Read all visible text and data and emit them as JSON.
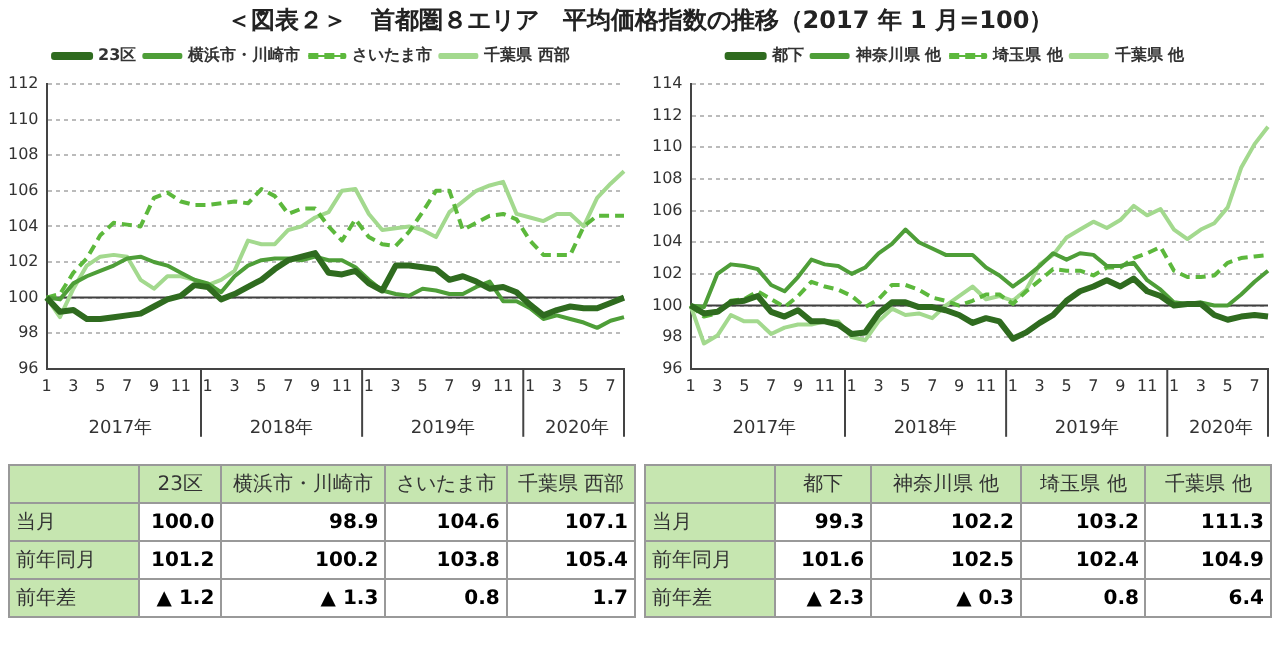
{
  "chart_data": [
    {
      "type": "line",
      "title": "＜図表２＞　首都圏８エリア　平均価格指数の推移（2017 年 1 月=100）",
      "categories": [
        "1",
        null,
        "3",
        null,
        "5",
        null,
        "7",
        null,
        "9",
        null,
        "11",
        null,
        "1",
        null,
        "3",
        null,
        "5",
        null,
        "7",
        null,
        "9",
        null,
        "11",
        null,
        "1",
        null,
        "3",
        null,
        "5",
        null,
        "7",
        null,
        "9",
        null,
        "11",
        null,
        "1",
        null,
        "3",
        null,
        "5",
        null,
        "7",
        null
      ],
      "series": [
        {
          "name": "23区",
          "color": "#2f6b1f",
          "values": [
            100,
            99.2,
            99.3,
            98.8,
            98.8,
            98.9,
            99.0,
            99.1,
            99.5,
            99.9,
            100.1,
            100.7,
            100.6,
            99.9,
            100.2,
            100.6,
            101.0,
            101.6,
            102.1,
            102.3,
            102.5,
            101.4,
            101.3,
            101.5,
            100.8,
            100.4,
            101.8,
            101.8,
            101.7,
            101.6,
            101.0,
            101.2,
            100.9,
            100.5,
            100.6,
            100.3,
            99.6,
            99.0,
            99.3,
            99.5,
            99.4,
            99.4,
            99.7,
            100.0
          ]
        },
        {
          "name": "横浜市・川崎市",
          "color": "#4e9e38",
          "values": [
            100,
            99.9,
            100.8,
            101.2,
            101.5,
            101.8,
            102.2,
            102.3,
            102.0,
            101.8,
            101.4,
            101.0,
            100.8,
            100.3,
            101.2,
            101.8,
            102.1,
            102.2,
            102.2,
            102.1,
            102.3,
            102.1,
            102.1,
            101.7,
            101.0,
            100.4,
            100.2,
            100.1,
            100.5,
            100.4,
            100.2,
            100.2,
            100.6,
            100.9,
            99.8,
            99.8,
            99.4,
            98.8,
            99.0,
            98.8,
            98.6,
            98.3,
            98.7,
            98.9
          ]
        },
        {
          "name": "さいたま市",
          "color": "#5cb83c",
          "line_style": "dashed",
          "values": [
            100,
            100.2,
            101.4,
            102.2,
            103.5,
            104.2,
            104.1,
            104.0,
            105.6,
            105.9,
            105.4,
            105.2,
            105.2,
            105.3,
            105.4,
            105.3,
            106.1,
            105.7,
            104.7,
            105.0,
            105.0,
            104.0,
            103.2,
            104.4,
            103.4,
            103.0,
            102.9,
            103.7,
            104.8,
            106.0,
            106.0,
            103.8,
            104.2,
            104.6,
            104.7,
            104.4,
            103.2,
            102.4,
            102.4,
            102.4,
            104.0,
            104.6,
            104.6,
            104.6
          ]
        },
        {
          "name": "千葉県 西部",
          "color": "#a3d98e",
          "values": [
            100,
            98.9,
            100.5,
            101.8,
            102.3,
            102.4,
            102.3,
            101.0,
            100.5,
            101.2,
            101.2,
            101.0,
            100.7,
            101.0,
            101.5,
            103.2,
            103.0,
            103.0,
            103.8,
            104.0,
            104.5,
            104.8,
            106.0,
            106.1,
            104.7,
            103.8,
            103.9,
            104.0,
            103.8,
            103.4,
            104.8,
            105.4,
            106.0,
            106.3,
            106.5,
            104.7,
            104.5,
            104.3,
            104.7,
            104.7,
            104.0,
            105.6,
            106.4,
            107.1
          ]
        }
      ],
      "ylim": [
        96,
        112
      ],
      "yticks": [
        96,
        98,
        100,
        102,
        104,
        106,
        108,
        110,
        112
      ],
      "grid": "y",
      "legend": "top",
      "ref_lines": [
        {
          "axis": "y",
          "value": 100,
          "color": "#404040"
        }
      ],
      "annotations": [
        "2017年",
        "2018年",
        "2019年",
        "2020年"
      ]
    },
    {
      "type": "line",
      "categories": [
        "1",
        null,
        "3",
        null,
        "5",
        null,
        "7",
        null,
        "9",
        null,
        "11",
        null,
        "1",
        null,
        "3",
        null,
        "5",
        null,
        "7",
        null,
        "9",
        null,
        "11",
        null,
        "1",
        null,
        "3",
        null,
        "5",
        null,
        "7",
        null,
        "9",
        null,
        "11",
        null,
        "1",
        null,
        "3",
        null,
        "5",
        null,
        "7",
        null
      ],
      "series": [
        {
          "name": "都下",
          "color": "#2f6b1f",
          "values": [
            100,
            99.5,
            99.6,
            100.2,
            100.3,
            100.6,
            99.6,
            99.3,
            99.7,
            99.0,
            99.0,
            98.8,
            98.2,
            98.3,
            99.5,
            100.2,
            100.2,
            99.9,
            99.9,
            99.7,
            99.4,
            98.9,
            99.2,
            99.0,
            97.9,
            98.3,
            98.9,
            99.4,
            100.3,
            100.9,
            101.2,
            101.6,
            101.2,
            101.7,
            100.9,
            100.6,
            100.0,
            100.1,
            100.1,
            99.4,
            99.1,
            99.3,
            99.4,
            99.3
          ]
        },
        {
          "name": "神奈川県 他",
          "color": "#4e9e38",
          "values": [
            100,
            99.9,
            102.0,
            102.6,
            102.5,
            102.3,
            101.3,
            100.9,
            101.8,
            102.9,
            102.6,
            102.5,
            102.0,
            102.4,
            103.3,
            103.9,
            104.8,
            104.0,
            103.6,
            103.2,
            103.2,
            103.2,
            102.4,
            101.9,
            101.2,
            101.8,
            102.5,
            103.3,
            102.9,
            103.3,
            103.2,
            102.5,
            102.5,
            102.7,
            101.6,
            101.0,
            100.2,
            100.1,
            100.2,
            100.0,
            100.0,
            100.7,
            101.5,
            102.2
          ]
        },
        {
          "name": "埼玉県 他",
          "color": "#5cb83c",
          "line_style": "dashed",
          "values": [
            100,
            99.3,
            99.5,
            100.3,
            100.4,
            100.9,
            100.4,
            99.9,
            100.6,
            101.5,
            101.2,
            101.0,
            100.6,
            99.9,
            100.4,
            101.3,
            101.3,
            101.0,
            100.5,
            100.3,
            100.0,
            100.3,
            100.7,
            100.7,
            100.1,
            100.9,
            101.6,
            102.3,
            102.2,
            102.2,
            101.9,
            102.4,
            102.4,
            103.0,
            103.3,
            103.7,
            102.2,
            101.8,
            101.8,
            101.9,
            102.7,
            103.0,
            103.1,
            103.2
          ]
        },
        {
          "name": "千葉県 他",
          "color": "#a3d98e",
          "values": [
            100,
            97.6,
            98.1,
            99.4,
            99.0,
            99.0,
            98.2,
            98.6,
            98.8,
            98.8,
            99.0,
            99.0,
            98.0,
            97.8,
            99.0,
            99.8,
            99.4,
            99.5,
            99.2,
            100.0,
            100.6,
            101.2,
            100.4,
            100.6,
            100.3,
            101.0,
            102.6,
            103.2,
            104.3,
            104.8,
            105.3,
            104.9,
            105.4,
            106.3,
            105.7,
            106.1,
            104.8,
            104.2,
            104.8,
            105.2,
            106.2,
            108.7,
            110.2,
            111.3
          ]
        }
      ],
      "ylim": [
        96,
        114
      ],
      "yticks": [
        96,
        98,
        100,
        102,
        104,
        106,
        108,
        110,
        112,
        114
      ],
      "grid": "y",
      "legend": "top",
      "ref_lines": [
        {
          "axis": "y",
          "value": 100,
          "color": "#404040"
        }
      ],
      "annotations": [
        "2017年",
        "2018年",
        "2019年",
        "2020年"
      ]
    },
    {
      "type": "other",
      "categories": [
        "23区",
        "横浜市・川崎市",
        "さいたま市",
        "千葉県 西部"
      ],
      "y_categories": [
        "当月",
        "前年同月",
        "前年差"
      ],
      "cell_labels": [
        [
          "100.0",
          "98.9",
          "104.6",
          "107.1"
        ],
        [
          "101.2",
          "100.2",
          "103.8",
          "105.4"
        ],
        [
          "▲ 1.2",
          "▲ 1.3",
          "0.8",
          "1.7"
        ]
      ]
    },
    {
      "type": "other",
      "categories": [
        "都下",
        "神奈川県 他",
        "埼玉県 他",
        "千葉県 他"
      ],
      "y_categories": [
        "当月",
        "前年同月",
        "前年差"
      ],
      "cell_labels": [
        [
          "99.3",
          "102.2",
          "103.2",
          "111.3"
        ],
        [
          "101.6",
          "102.5",
          "102.4",
          "104.9"
        ],
        [
          "▲ 2.3",
          "▲ 0.3",
          "0.8",
          "6.4"
        ]
      ]
    }
  ]
}
